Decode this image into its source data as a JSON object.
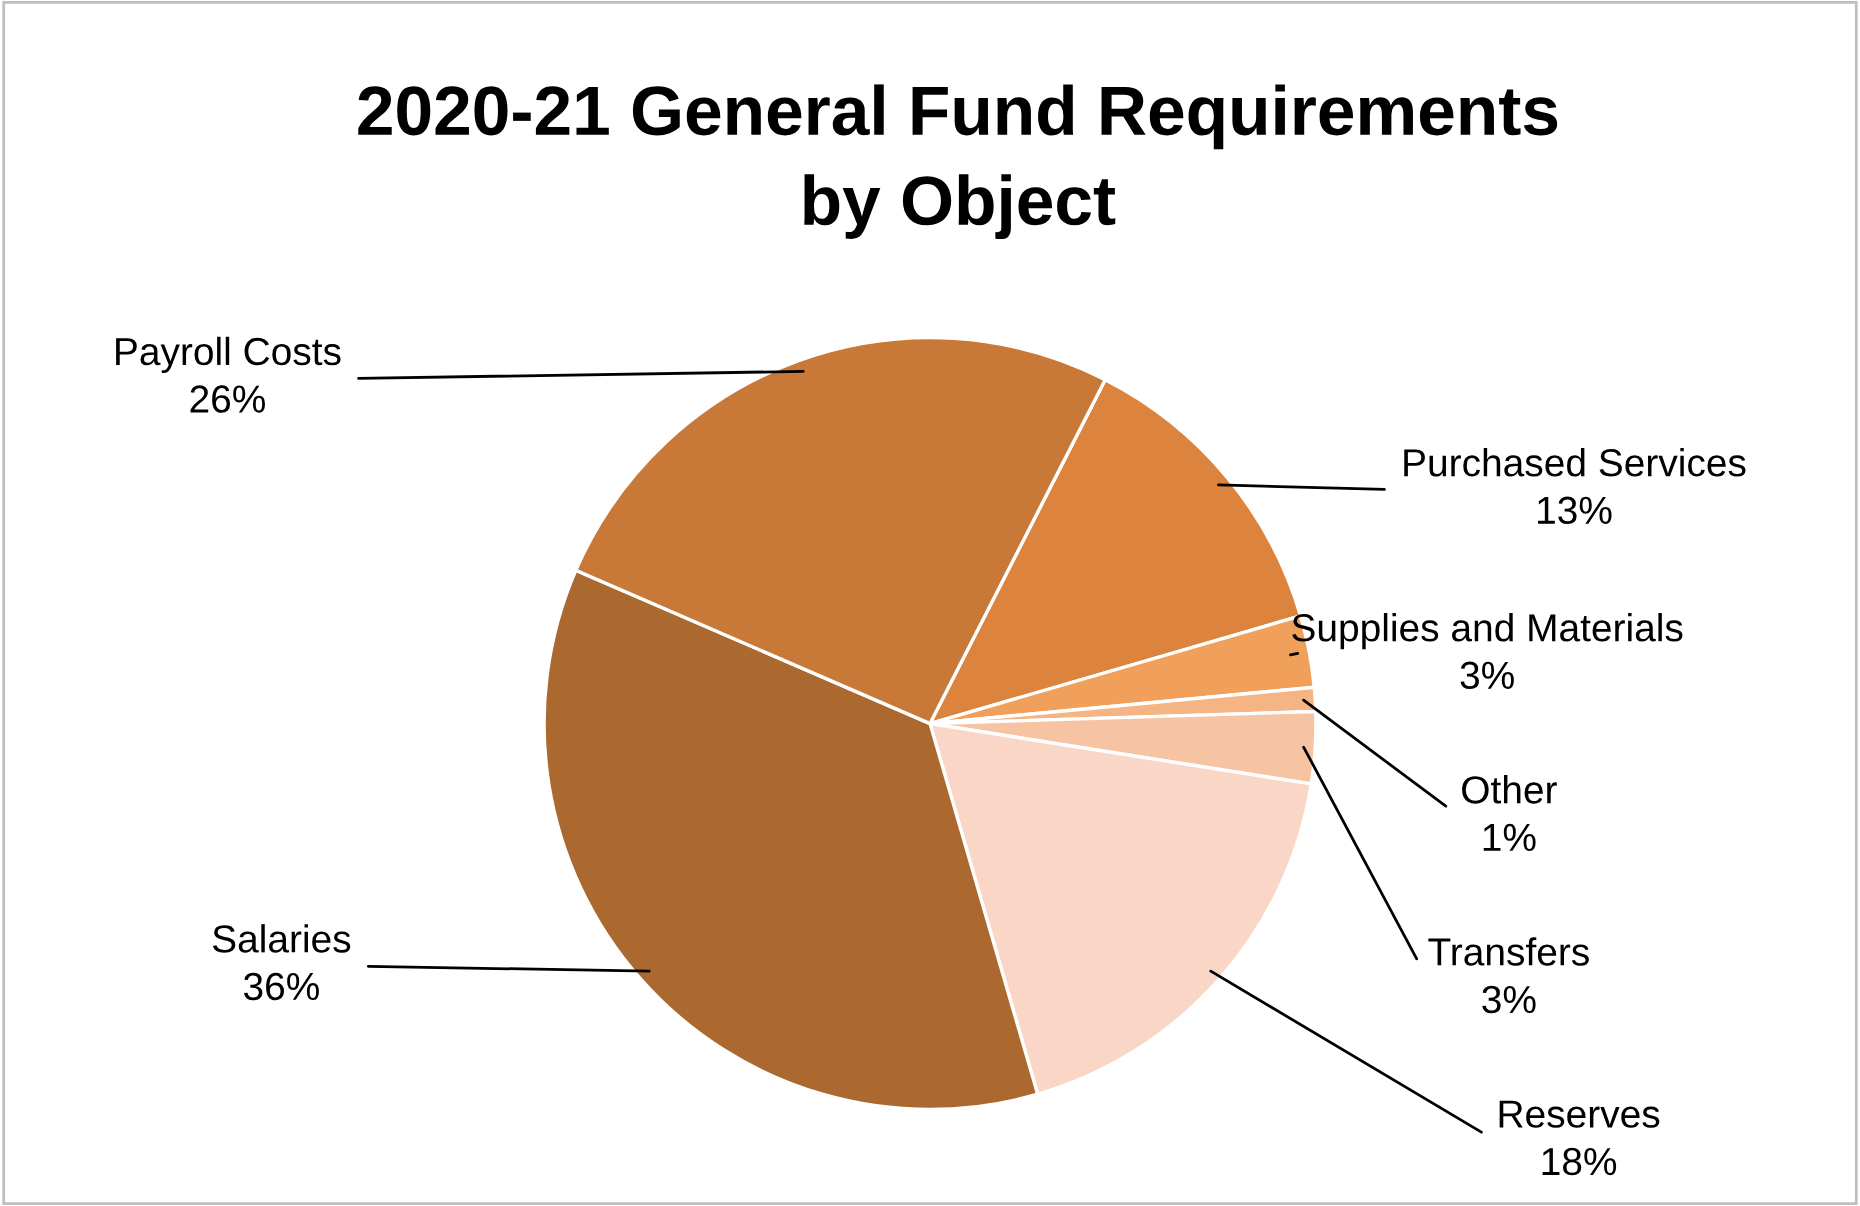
{
  "chart_data": {
    "type": "pie",
    "title": "2020-21 General Fund Requirements\nby Object",
    "categories": [
      "Purchased Services",
      "Supplies and Materials",
      "Other",
      "Transfers",
      "Reserves",
      "Salaries",
      "Payroll Costs"
    ],
    "values": [
      13,
      3,
      1,
      3,
      18,
      36,
      26
    ],
    "colors": [
      "#dc843e",
      "#f0a05a",
      "#f5b483",
      "#f7c4a3",
      "#f9d6c6",
      "#ab6930",
      "#c87937"
    ],
    "value_labels": [
      "13%",
      "3%",
      "1%",
      "3%",
      "18%",
      "36%",
      "26%"
    ],
    "legend": false
  }
}
